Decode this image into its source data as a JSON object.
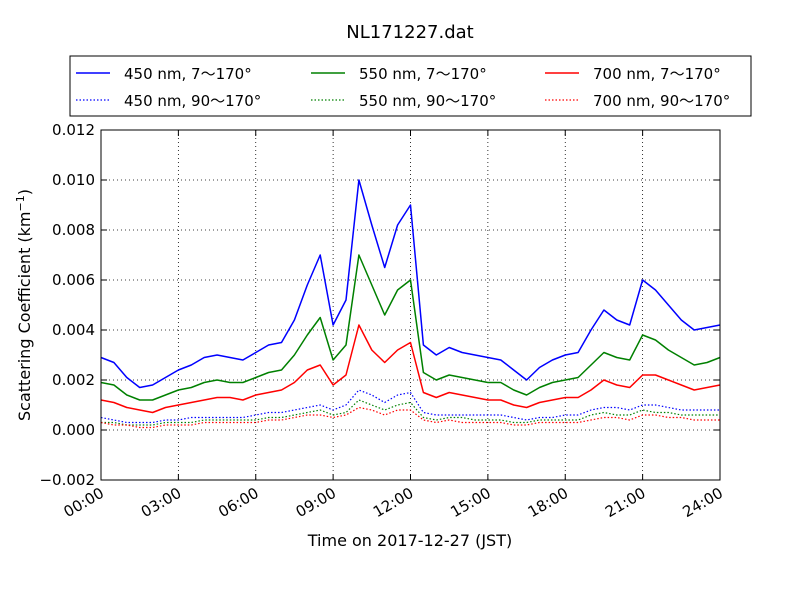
{
  "chart_data": {
    "type": "line",
    "title": "NL171227.dat",
    "xlabel": "Time on 2017-12-27 (JST)",
    "ylabel_main": "Scattering Coefficient (km",
    "ylabel_sup": "−1",
    "ylabel_close": ")",
    "xlim": [
      "00:00",
      "24:00"
    ],
    "ylim": [
      -0.002,
      0.012
    ],
    "x_ticks": [
      "00:00",
      "03:00",
      "06:00",
      "09:00",
      "12:00",
      "15:00",
      "18:00",
      "21:00",
      "24:00"
    ],
    "y_ticks": [
      "−0.002",
      "0.000",
      "0.002",
      "0.004",
      "0.006",
      "0.008",
      "0.010",
      "0.012"
    ],
    "grid": true,
    "legend_position": "top",
    "colors": {
      "blue": "#0000ff",
      "green": "#008000",
      "red": "#ff0000"
    },
    "x_hours": [
      0,
      0.5,
      1,
      1.5,
      2,
      2.5,
      3,
      3.5,
      4,
      4.5,
      5,
      5.5,
      6,
      6.5,
      7,
      7.5,
      8,
      8.5,
      9,
      9.5,
      10,
      10.5,
      11,
      11.5,
      12,
      12.5,
      13,
      13.5,
      14,
      14.5,
      15,
      15.5,
      16,
      16.5,
      17,
      17.5,
      18,
      18.5,
      19,
      19.5,
      20,
      20.5,
      21,
      21.5,
      22,
      22.5,
      23,
      23.5,
      24
    ],
    "series": [
      {
        "name": "450 nm, 7～170°",
        "color": "blue",
        "style": "solid",
        "values": [
          0.0029,
          0.0027,
          0.0021,
          0.0017,
          0.0018,
          0.0021,
          0.0024,
          0.0026,
          0.0029,
          0.003,
          0.0029,
          0.0028,
          0.0031,
          0.0034,
          0.0035,
          0.0044,
          0.0058,
          0.007,
          0.0042,
          0.0052,
          0.01,
          0.0082,
          0.0065,
          0.0082,
          0.009,
          0.0034,
          0.003,
          0.0033,
          0.0031,
          0.003,
          0.0029,
          0.0028,
          0.0024,
          0.002,
          0.0025,
          0.0028,
          0.003,
          0.0031,
          0.004,
          0.0048,
          0.0044,
          0.0042,
          0.006,
          0.0056,
          0.005,
          0.0044,
          0.004,
          0.0041,
          0.0042
        ]
      },
      {
        "name": "450 nm, 90～170°",
        "color": "blue",
        "style": "dotted",
        "values": [
          0.0005,
          0.0004,
          0.0003,
          0.0003,
          0.0003,
          0.0004,
          0.0004,
          0.0005,
          0.0005,
          0.0005,
          0.0005,
          0.0005,
          0.0006,
          0.0007,
          0.0007,
          0.0008,
          0.0009,
          0.001,
          0.0008,
          0.001,
          0.0016,
          0.0014,
          0.0011,
          0.0014,
          0.0015,
          0.0007,
          0.0006,
          0.0006,
          0.0006,
          0.0006,
          0.0006,
          0.0006,
          0.0005,
          0.0004,
          0.0005,
          0.0005,
          0.0006,
          0.0006,
          0.0008,
          0.0009,
          0.0009,
          0.0008,
          0.001,
          0.001,
          0.0009,
          0.0008,
          0.0008,
          0.0008,
          0.0008
        ]
      },
      {
        "name": "550 nm, 7～170°",
        "color": "green",
        "style": "solid",
        "values": [
          0.0019,
          0.0018,
          0.0014,
          0.0012,
          0.0012,
          0.0014,
          0.0016,
          0.0017,
          0.0019,
          0.002,
          0.0019,
          0.0019,
          0.0021,
          0.0023,
          0.0024,
          0.003,
          0.0038,
          0.0045,
          0.0028,
          0.0034,
          0.007,
          0.0058,
          0.0046,
          0.0056,
          0.006,
          0.0023,
          0.002,
          0.0022,
          0.0021,
          0.002,
          0.0019,
          0.0019,
          0.0016,
          0.0014,
          0.0017,
          0.0019,
          0.002,
          0.0021,
          0.0026,
          0.0031,
          0.0029,
          0.0028,
          0.0038,
          0.0036,
          0.0032,
          0.0029,
          0.0026,
          0.0027,
          0.0029
        ]
      },
      {
        "name": "550 nm, 90～170°",
        "color": "green",
        "style": "dotted",
        "values": [
          0.0003,
          0.0003,
          0.0002,
          0.0002,
          0.0002,
          0.0003,
          0.0003,
          0.0003,
          0.0004,
          0.0004,
          0.0004,
          0.0004,
          0.0004,
          0.0005,
          0.0005,
          0.0006,
          0.0007,
          0.0008,
          0.0006,
          0.0007,
          0.0012,
          0.001,
          0.0008,
          0.001,
          0.0011,
          0.0005,
          0.0004,
          0.0005,
          0.0005,
          0.0004,
          0.0004,
          0.0004,
          0.0003,
          0.0003,
          0.0004,
          0.0004,
          0.0004,
          0.0004,
          0.0006,
          0.0007,
          0.0006,
          0.0006,
          0.0008,
          0.0007,
          0.0007,
          0.0006,
          0.0006,
          0.0006,
          0.0006
        ]
      },
      {
        "name": "700 nm, 7～170°",
        "color": "red",
        "style": "solid",
        "values": [
          0.0012,
          0.0011,
          0.0009,
          0.0008,
          0.0007,
          0.0009,
          0.001,
          0.0011,
          0.0012,
          0.0013,
          0.0013,
          0.0012,
          0.0014,
          0.0015,
          0.0016,
          0.0019,
          0.0024,
          0.0026,
          0.0018,
          0.0022,
          0.0042,
          0.0032,
          0.0027,
          0.0032,
          0.0035,
          0.0015,
          0.0013,
          0.0015,
          0.0014,
          0.0013,
          0.0012,
          0.0012,
          0.001,
          0.0009,
          0.0011,
          0.0012,
          0.0013,
          0.0013,
          0.0016,
          0.002,
          0.0018,
          0.0017,
          0.0022,
          0.0022,
          0.002,
          0.0018,
          0.0016,
          0.0017,
          0.0018
        ]
      },
      {
        "name": "700 nm, 90～170°",
        "color": "red",
        "style": "dotted",
        "values": [
          0.0003,
          0.0002,
          0.0002,
          0.0001,
          0.0001,
          0.0002,
          0.0002,
          0.0002,
          0.0003,
          0.0003,
          0.0003,
          0.0003,
          0.0003,
          0.0004,
          0.0004,
          0.0005,
          0.0006,
          0.0006,
          0.0005,
          0.0006,
          0.0009,
          0.0008,
          0.0006,
          0.0008,
          0.0008,
          0.0004,
          0.0003,
          0.0004,
          0.0003,
          0.0003,
          0.0003,
          0.0003,
          0.0002,
          0.0002,
          0.0003,
          0.0003,
          0.0003,
          0.0003,
          0.0004,
          0.0005,
          0.0005,
          0.0004,
          0.0006,
          0.0006,
          0.0005,
          0.0005,
          0.0004,
          0.0004,
          0.0004
        ]
      }
    ]
  }
}
